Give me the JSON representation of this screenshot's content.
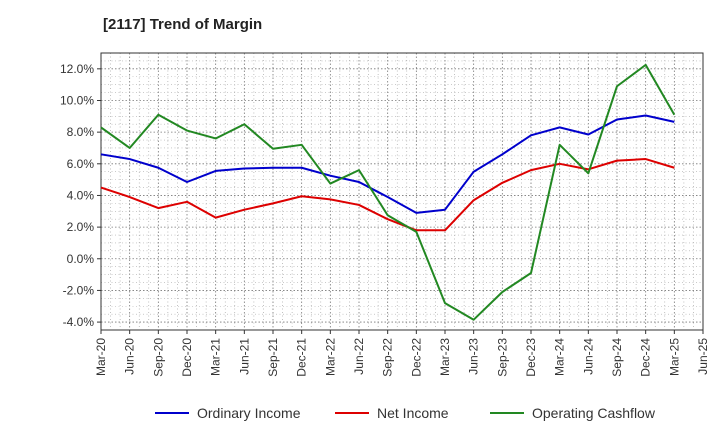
{
  "title": "[2117]  Trend of Margin",
  "chart_data": {
    "type": "line",
    "title": "[2117]  Trend of Margin",
    "xlabel": "",
    "ylabel": "",
    "ylim": [
      -4.5,
      13.0
    ],
    "yticks": [
      -4.0,
      -2.0,
      0.0,
      2.0,
      4.0,
      6.0,
      8.0,
      10.0,
      12.0
    ],
    "ytick_labels": [
      "-4.0%",
      "-2.0%",
      "0.0%",
      "2.0%",
      "4.0%",
      "6.0%",
      "8.0%",
      "10.0%",
      "12.0%"
    ],
    "x_tick_labels": [
      "Mar-20",
      "Jun-20",
      "Sep-20",
      "Dec-20",
      "Mar-21",
      "Jun-21",
      "Sep-21",
      "Dec-21",
      "Mar-22",
      "Jun-22",
      "Sep-22",
      "Dec-22",
      "Mar-23",
      "Jun-23",
      "Sep-23",
      "Dec-23",
      "Mar-24",
      "Jun-24",
      "Sep-24",
      "Dec-24",
      "Mar-25",
      "Jun-25"
    ],
    "categories": [
      "Mar-20",
      "Jun-20",
      "Sep-20",
      "Dec-20",
      "Mar-21",
      "Jun-21",
      "Sep-21",
      "Dec-21",
      "Mar-22",
      "Jun-22",
      "Sep-22",
      "Dec-22",
      "Mar-23",
      "Jun-23",
      "Sep-23",
      "Dec-23",
      "Mar-24",
      "Jun-24",
      "Sep-24",
      "Dec-24",
      "Mar-25"
    ],
    "grid": true,
    "legend_position": "bottom",
    "series": [
      {
        "name": "Ordinary Income",
        "color": "#0000cc",
        "values": [
          6.6,
          6.3,
          5.75,
          4.85,
          5.55,
          5.7,
          5.75,
          5.75,
          5.25,
          4.85,
          3.9,
          2.9,
          3.1,
          5.5,
          6.6,
          7.8,
          8.3,
          7.85,
          8.8,
          9.05,
          8.65
        ]
      },
      {
        "name": "Net Income",
        "color": "#dd0000",
        "values": [
          4.5,
          3.9,
          3.2,
          3.6,
          2.6,
          3.1,
          3.5,
          3.95,
          3.75,
          3.4,
          2.5,
          1.8,
          1.8,
          3.7,
          4.8,
          5.6,
          6.0,
          5.65,
          6.2,
          6.3,
          5.75
        ]
      },
      {
        "name": "Operating Cashflow",
        "color": "#228822",
        "values": [
          8.3,
          7.0,
          9.1,
          8.1,
          7.6,
          8.5,
          6.95,
          7.2,
          4.75,
          5.6,
          2.75,
          1.7,
          -2.8,
          -3.85,
          -2.1,
          -0.9,
          7.2,
          5.4,
          10.9,
          12.25,
          9.1
        ]
      }
    ]
  }
}
